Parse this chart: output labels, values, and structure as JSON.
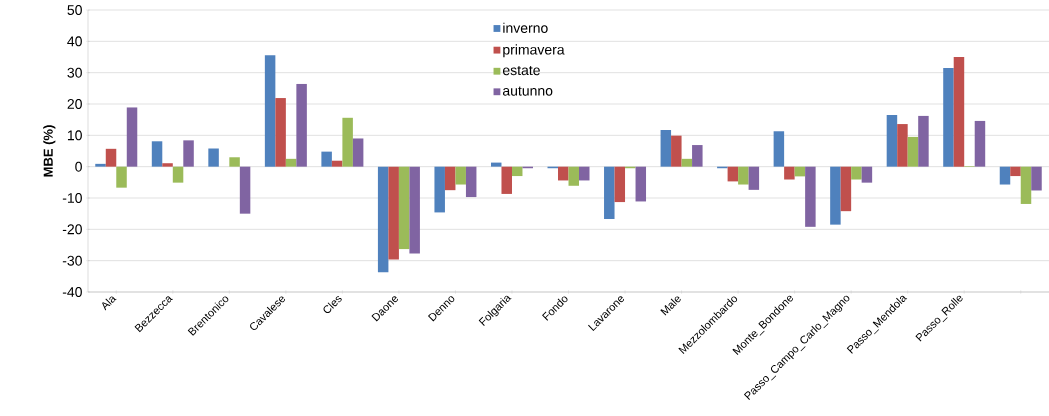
{
  "chart_data": {
    "type": "bar",
    "ylabel": "MBE (%)",
    "categories": [
      "Ala",
      "Bezzecca",
      "Brentonico",
      "Cavalese",
      "Cles",
      "Daone",
      "Denno",
      "Folgaria",
      "Fondo",
      "Lavarone",
      "Male",
      "Mezzolombardo",
      "Monte_Bondone",
      "Passo_Campo_Carlo_Magno",
      "Passo_Mendola",
      "Passo_Rolle",
      null
    ],
    "series": [
      {
        "name": "inverno",
        "color": "#4f81bd",
        "values": [
          0.9,
          8.1,
          5.8,
          35.6,
          4.8,
          -33.7,
          -14.6,
          1.3,
          -0.5,
          -16.7,
          11.7,
          -0.5,
          11.3,
          -18.5,
          16.5,
          31.5,
          -5.7
        ]
      },
      {
        "name": "primavera",
        "color": "#c0504d",
        "values": [
          5.7,
          1.1,
          0,
          21.9,
          1.9,
          -29.6,
          -7.5,
          -8.7,
          -4.4,
          -11.3,
          9.9,
          -4.7,
          -4.1,
          -14.2,
          13.6,
          35.0,
          -3.0
        ]
      },
      {
        "name": "estate",
        "color": "#9bbb59",
        "values": [
          -6.7,
          -5.1,
          3.0,
          2.5,
          15.6,
          -26.3,
          -5.7,
          -3.0,
          -6.1,
          -0.5,
          2.5,
          -5.7,
          -3.1,
          -4.1,
          9.5,
          0.2,
          -11.9
        ]
      },
      {
        "name": "autunno",
        "color": "#8064a2",
        "values": [
          18.9,
          8.4,
          -15.0,
          26.4,
          9.0,
          -27.7,
          -9.7,
          -0.5,
          -4.4,
          -11.1,
          6.9,
          -7.4,
          -19.2,
          -5.1,
          16.2,
          14.6,
          -7.6
        ]
      }
    ],
    "ylim": [
      -40,
      50
    ],
    "yticks": [
      -40,
      -30,
      -20,
      -10,
      0,
      10,
      20,
      30,
      40,
      50
    ],
    "grid": "y",
    "legend": "top"
  }
}
